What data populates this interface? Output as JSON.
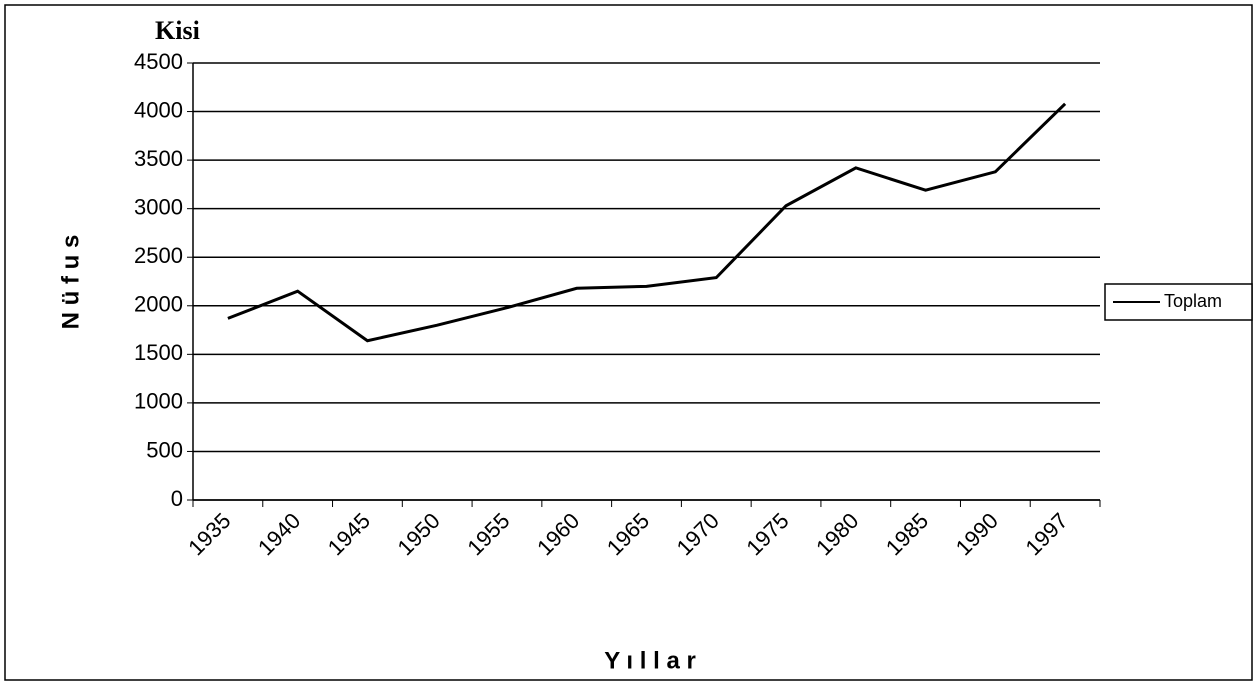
{
  "chart_data": {
    "type": "line",
    "title": "Kisi",
    "ylabel": "N ü f u s",
    "xlabel": "Y ı l l a r",
    "categories": [
      "1935",
      "1940",
      "1945",
      "1950",
      "1955",
      "1960",
      "1965",
      "1970",
      "1975",
      "1980",
      "1985",
      "1990",
      "1997"
    ],
    "series": [
      {
        "name": "Toplam",
        "color": "#000000",
        "values": [
          1870,
          2150,
          1640,
          1800,
          1980,
          2180,
          2200,
          2290,
          3030,
          3420,
          3190,
          3380,
          4080
        ]
      }
    ],
    "ylim": [
      0,
      4500
    ],
    "yticks": [
      0,
      500,
      1000,
      1500,
      2000,
      2500,
      3000,
      3500,
      4000,
      4500
    ],
    "grid": true,
    "legend": "right"
  }
}
